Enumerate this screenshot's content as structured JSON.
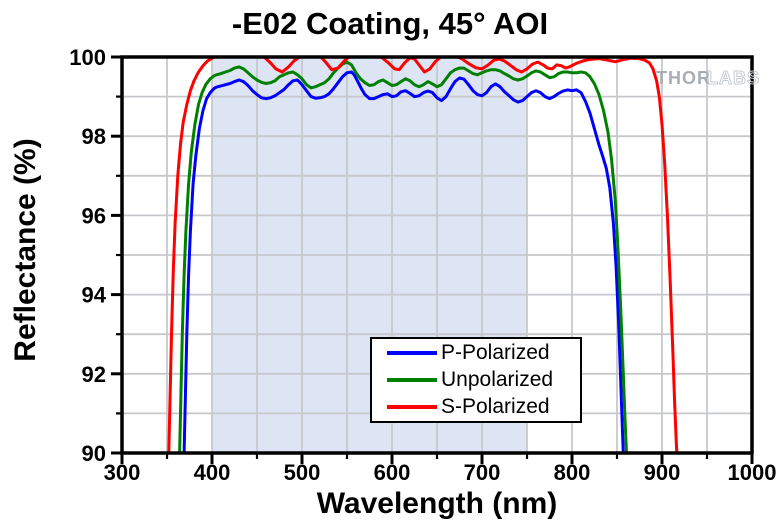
{
  "title": "-E02 Coating, 45° AOI",
  "watermark": {
    "thor": "THOR",
    "labs": "LABS"
  },
  "chart_data": {
    "type": "line",
    "title": "-E02 Coating, 45° AOI",
    "xlabel": "Wavelength (nm)",
    "ylabel": "Reflectance (%)",
    "xlim": [
      300,
      1000
    ],
    "ylim": [
      90,
      100
    ],
    "x_major_ticks": [
      300,
      400,
      500,
      600,
      700,
      800,
      900,
      1000
    ],
    "x_minor_ticks": [
      350,
      450,
      550,
      650,
      750,
      850,
      950
    ],
    "y_major_ticks": [
      90,
      92,
      94,
      96,
      98,
      100
    ],
    "y_minor_ticks": [
      91,
      93,
      95,
      97,
      99
    ],
    "grid": {
      "x_start": 350,
      "x_end": 950,
      "x_step": 50,
      "y_start": 91,
      "y_end": 99,
      "y_step": 1,
      "color": "#c6c8cc"
    },
    "shaded_region": {
      "x_start": 400,
      "x_end": 750,
      "color": "#dde4f4"
    },
    "legend_position": "bottom-center",
    "axis_color": "#000000",
    "series": [
      {
        "name": "P-Polarized",
        "color": "#0000ff",
        "points": [
          [
            369,
            90
          ],
          [
            370,
            91
          ],
          [
            372,
            93
          ],
          [
            374,
            94.5
          ],
          [
            376,
            95.6
          ],
          [
            379,
            96.8
          ],
          [
            382,
            97.5
          ],
          [
            386,
            98.2
          ],
          [
            390,
            98.65
          ],
          [
            394,
            98.95
          ],
          [
            398,
            99.1
          ],
          [
            402,
            99.2
          ],
          [
            405,
            99.24
          ],
          [
            410,
            99.27
          ],
          [
            415,
            99.3
          ],
          [
            420,
            99.33
          ],
          [
            425,
            99.38
          ],
          [
            430,
            99.42
          ],
          [
            435,
            99.38
          ],
          [
            440,
            99.28
          ],
          [
            445,
            99.15
          ],
          [
            450,
            99.05
          ],
          [
            455,
            98.97
          ],
          [
            460,
            98.95
          ],
          [
            465,
            98.97
          ],
          [
            470,
            99.02
          ],
          [
            475,
            99.1
          ],
          [
            480,
            99.18
          ],
          [
            485,
            99.3
          ],
          [
            490,
            99.4
          ],
          [
            495,
            99.42
          ],
          [
            500,
            99.3
          ],
          [
            505,
            99.15
          ],
          [
            510,
            99.0
          ],
          [
            515,
            98.96
          ],
          [
            520,
            98.97
          ],
          [
            525,
            99.0
          ],
          [
            530,
            99.07
          ],
          [
            535,
            99.2
          ],
          [
            540,
            99.35
          ],
          [
            545,
            99.5
          ],
          [
            550,
            99.6
          ],
          [
            555,
            99.62
          ],
          [
            558,
            99.55
          ],
          [
            562,
            99.38
          ],
          [
            566,
            99.2
          ],
          [
            570,
            99.05
          ],
          [
            575,
            98.95
          ],
          [
            580,
            98.95
          ],
          [
            585,
            99.0
          ],
          [
            590,
            99.05
          ],
          [
            595,
            99.07
          ],
          [
            600,
            99.0
          ],
          [
            605,
            99.02
          ],
          [
            610,
            99.12
          ],
          [
            615,
            99.15
          ],
          [
            620,
            99.08
          ],
          [
            625,
            99.0
          ],
          [
            630,
            99.02
          ],
          [
            635,
            99.1
          ],
          [
            640,
            99.14
          ],
          [
            645,
            99.1
          ],
          [
            650,
            98.97
          ],
          [
            655,
            98.9
          ],
          [
            660,
            99.0
          ],
          [
            665,
            99.2
          ],
          [
            670,
            99.38
          ],
          [
            675,
            99.47
          ],
          [
            680,
            99.44
          ],
          [
            685,
            99.3
          ],
          [
            690,
            99.15
          ],
          [
            695,
            99.05
          ],
          [
            700,
            99.02
          ],
          [
            705,
            99.1
          ],
          [
            710,
            99.25
          ],
          [
            715,
            99.32
          ],
          [
            720,
            99.25
          ],
          [
            725,
            99.12
          ],
          [
            730,
            99.02
          ],
          [
            735,
            98.92
          ],
          [
            740,
            98.86
          ],
          [
            745,
            98.9
          ],
          [
            750,
            99.0
          ],
          [
            755,
            99.1
          ],
          [
            760,
            99.15
          ],
          [
            765,
            99.1
          ],
          [
            770,
            99.0
          ],
          [
            775,
            98.95
          ],
          [
            780,
            99.0
          ],
          [
            785,
            99.08
          ],
          [
            790,
            99.14
          ],
          [
            795,
            99.17
          ],
          [
            800,
            99.15
          ],
          [
            805,
            99.17
          ],
          [
            810,
            99.1
          ],
          [
            815,
            98.88
          ],
          [
            820,
            98.58
          ],
          [
            825,
            98.18
          ],
          [
            830,
            97.78
          ],
          [
            834,
            97.5
          ],
          [
            838,
            97.2
          ],
          [
            842,
            96.7
          ],
          [
            846,
            95.8
          ],
          [
            849,
            94.7
          ],
          [
            852,
            93.2
          ],
          [
            854,
            91.9
          ],
          [
            856,
            90.6
          ],
          [
            857,
            90
          ]
        ]
      },
      {
        "name": "Unpolarized",
        "color": "#008000",
        "points": [
          [
            364,
            90
          ],
          [
            365,
            91
          ],
          [
            367,
            93
          ],
          [
            369,
            94.5
          ],
          [
            371,
            95.6
          ],
          [
            374,
            96.8
          ],
          [
            377,
            97.6
          ],
          [
            381,
            98.3
          ],
          [
            385,
            98.8
          ],
          [
            389,
            99.1
          ],
          [
            393,
            99.3
          ],
          [
            398,
            99.45
          ],
          [
            402,
            99.52
          ],
          [
            405,
            99.55
          ],
          [
            410,
            99.58
          ],
          [
            415,
            99.62
          ],
          [
            420,
            99.66
          ],
          [
            425,
            99.72
          ],
          [
            430,
            99.75
          ],
          [
            435,
            99.7
          ],
          [
            440,
            99.6
          ],
          [
            445,
            99.5
          ],
          [
            450,
            99.42
          ],
          [
            455,
            99.36
          ],
          [
            460,
            99.33
          ],
          [
            465,
            99.35
          ],
          [
            470,
            99.4
          ],
          [
            475,
            99.5
          ],
          [
            480,
            99.55
          ],
          [
            485,
            99.6
          ],
          [
            490,
            99.62
          ],
          [
            495,
            99.55
          ],
          [
            500,
            99.45
          ],
          [
            505,
            99.3
          ],
          [
            510,
            99.22
          ],
          [
            515,
            99.25
          ],
          [
            520,
            99.3
          ],
          [
            525,
            99.35
          ],
          [
            530,
            99.45
          ],
          [
            535,
            99.6
          ],
          [
            540,
            99.72
          ],
          [
            545,
            99.82
          ],
          [
            550,
            99.87
          ],
          [
            555,
            99.8
          ],
          [
            560,
            99.6
          ],
          [
            565,
            99.45
          ],
          [
            570,
            99.35
          ],
          [
            575,
            99.28
          ],
          [
            580,
            99.3
          ],
          [
            585,
            99.38
          ],
          [
            590,
            99.42
          ],
          [
            595,
            99.35
          ],
          [
            600,
            99.28
          ],
          [
            605,
            99.3
          ],
          [
            610,
            99.38
          ],
          [
            615,
            99.45
          ],
          [
            620,
            99.4
          ],
          [
            625,
            99.3
          ],
          [
            630,
            99.25
          ],
          [
            635,
            99.3
          ],
          [
            640,
            99.38
          ],
          [
            645,
            99.32
          ],
          [
            650,
            99.25
          ],
          [
            655,
            99.3
          ],
          [
            660,
            99.45
          ],
          [
            665,
            99.6
          ],
          [
            670,
            99.68
          ],
          [
            675,
            99.72
          ],
          [
            680,
            99.72
          ],
          [
            685,
            99.65
          ],
          [
            690,
            99.58
          ],
          [
            695,
            99.55
          ],
          [
            700,
            99.6
          ],
          [
            705,
            99.65
          ],
          [
            710,
            99.68
          ],
          [
            715,
            99.68
          ],
          [
            720,
            99.65
          ],
          [
            725,
            99.58
          ],
          [
            730,
            99.52
          ],
          [
            735,
            99.45
          ],
          [
            740,
            99.42
          ],
          [
            745,
            99.45
          ],
          [
            750,
            99.52
          ],
          [
            755,
            99.6
          ],
          [
            760,
            99.65
          ],
          [
            765,
            99.62
          ],
          [
            770,
            99.55
          ],
          [
            775,
            99.48
          ],
          [
            780,
            99.5
          ],
          [
            785,
            99.58
          ],
          [
            790,
            99.62
          ],
          [
            795,
            99.62
          ],
          [
            800,
            99.6
          ],
          [
            805,
            99.6
          ],
          [
            810,
            99.62
          ],
          [
            815,
            99.6
          ],
          [
            820,
            99.5
          ],
          [
            825,
            99.32
          ],
          [
            830,
            99.05
          ],
          [
            835,
            98.65
          ],
          [
            840,
            98.1
          ],
          [
            844,
            97.4
          ],
          [
            848,
            96.4
          ],
          [
            851,
            95.2
          ],
          [
            854,
            93.7
          ],
          [
            857,
            92
          ],
          [
            859,
            90.8
          ],
          [
            860.5,
            90
          ]
        ]
      },
      {
        "name": "S-Polarized",
        "color": "#ff0000",
        "points": [
          [
            352,
            90
          ],
          [
            353,
            91
          ],
          [
            355,
            93
          ],
          [
            357,
            94.6
          ],
          [
            359,
            95.8
          ],
          [
            362,
            97
          ],
          [
            365,
            97.8
          ],
          [
            368,
            98.35
          ],
          [
            372,
            98.8
          ],
          [
            376,
            99.15
          ],
          [
            380,
            99.4
          ],
          [
            385,
            99.62
          ],
          [
            390,
            99.78
          ],
          [
            395,
            99.9
          ],
          [
            400,
            99.97
          ],
          [
            404,
            100.02
          ],
          [
            410,
            100.05
          ],
          [
            420,
            100.05
          ],
          [
            430,
            100.05
          ],
          [
            440,
            100.05
          ],
          [
            450,
            100.05
          ],
          [
            458,
            100
          ],
          [
            465,
            99.85
          ],
          [
            471,
            99.7
          ],
          [
            478,
            99.62
          ],
          [
            485,
            99.75
          ],
          [
            491,
            99.9
          ],
          [
            497,
            100
          ],
          [
            505,
            100.05
          ],
          [
            515,
            100.05
          ],
          [
            521,
            100
          ],
          [
            527,
            99.85
          ],
          [
            533,
            99.68
          ],
          [
            540,
            99.72
          ],
          [
            546,
            99.88
          ],
          [
            552,
            100
          ],
          [
            560,
            100.05
          ],
          [
            575,
            100.05
          ],
          [
            588,
            100
          ],
          [
            596,
            99.85
          ],
          [
            603,
            99.7
          ],
          [
            608,
            99.68
          ],
          [
            614,
            99.85
          ],
          [
            620,
            99.98
          ],
          [
            625,
            99.95
          ],
          [
            630,
            99.8
          ],
          [
            636,
            99.62
          ],
          [
            642,
            99.7
          ],
          [
            648,
            99.88
          ],
          [
            654,
            100
          ],
          [
            662,
            100.05
          ],
          [
            670,
            100.03
          ],
          [
            678,
            99.95
          ],
          [
            686,
            99.82
          ],
          [
            693,
            99.73
          ],
          [
            700,
            99.7
          ],
          [
            707,
            99.8
          ],
          [
            713,
            99.92
          ],
          [
            719,
            99.95
          ],
          [
            725,
            99.9
          ],
          [
            731,
            99.8
          ],
          [
            738,
            99.68
          ],
          [
            744,
            99.62
          ],
          [
            750,
            99.7
          ],
          [
            756,
            99.82
          ],
          [
            762,
            99.87
          ],
          [
            768,
            99.8
          ],
          [
            773,
            99.72
          ],
          [
            778,
            99.7
          ],
          [
            783,
            99.8
          ],
          [
            788,
            99.78
          ],
          [
            793,
            99.72
          ],
          [
            798,
            99.76
          ],
          [
            805,
            99.84
          ],
          [
            812,
            99.9
          ],
          [
            820,
            99.94
          ],
          [
            830,
            99.96
          ],
          [
            840,
            99.92
          ],
          [
            848,
            99.88
          ],
          [
            856,
            99.93
          ],
          [
            865,
            99.97
          ],
          [
            874,
            99.96
          ],
          [
            881,
            99.92
          ],
          [
            886,
            99.85
          ],
          [
            890,
            99.7
          ],
          [
            894,
            99.4
          ],
          [
            897,
            99.0
          ],
          [
            900,
            98.3
          ],
          [
            903,
            97.3
          ],
          [
            906,
            96.0
          ],
          [
            909,
            94.4
          ],
          [
            912,
            92.6
          ],
          [
            914,
            91.3
          ],
          [
            916,
            90.2
          ],
          [
            916.5,
            90
          ]
        ]
      }
    ]
  }
}
